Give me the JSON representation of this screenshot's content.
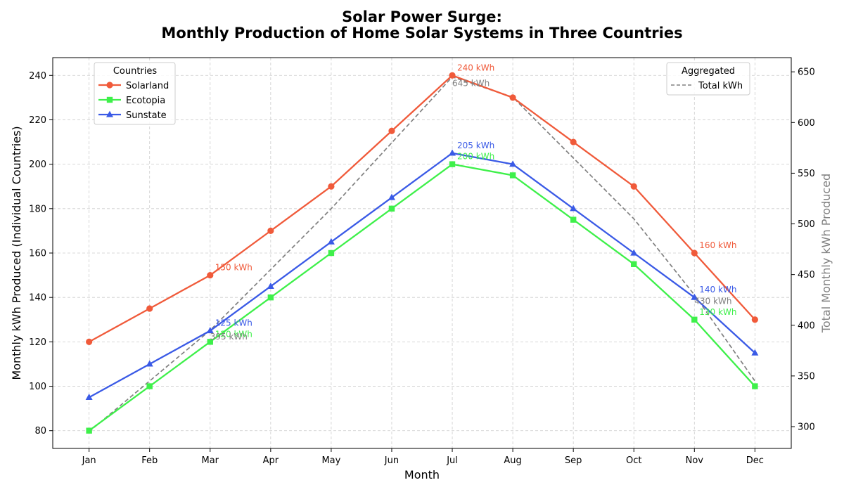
{
  "chart_data": {
    "type": "line",
    "title_line1": "Solar Power Surge:",
    "title_line2": "Monthly Production of Home Solar Systems in Three Countries",
    "xlabel": "Month",
    "ylabel": "Monthly kWh Produced (Individual Countries)",
    "y2label": "Total Monthly kWh Produced",
    "categories": [
      "Jan",
      "Feb",
      "Mar",
      "Apr",
      "May",
      "Jun",
      "Jul",
      "Aug",
      "Sep",
      "Oct",
      "Nov",
      "Dec"
    ],
    "ylim": [
      72,
      248
    ],
    "y2lim": [
      278.5,
      664
    ],
    "yticks": [
      80,
      100,
      120,
      140,
      160,
      180,
      200,
      220,
      240
    ],
    "y2ticks": [
      300,
      350,
      400,
      450,
      500,
      550,
      600,
      650
    ],
    "grid": true,
    "series": [
      {
        "name": "Solarland",
        "color": "#f05a3a",
        "marker": "circle",
        "values": [
          120,
          135,
          150,
          170,
          190,
          215,
          240,
          230,
          210,
          190,
          160,
          130
        ]
      },
      {
        "name": "Ecotopia",
        "color": "#3ef04a",
        "marker": "square",
        "values": [
          80,
          100,
          120,
          140,
          160,
          180,
          200,
          195,
          175,
          155,
          130,
          100
        ]
      },
      {
        "name": "Sunstate",
        "color": "#3a5ae6",
        "marker": "triangle",
        "values": [
          95,
          110,
          125,
          145,
          165,
          185,
          205,
          200,
          180,
          160,
          140,
          115
        ]
      }
    ],
    "total_series": {
      "name": "Total kWh",
      "color": "#808080",
      "values": [
        295,
        345,
        395,
        455,
        515,
        580,
        645,
        625,
        565,
        505,
        430,
        345
      ]
    },
    "annotations": [
      {
        "series": "Solarland",
        "month": "Mar",
        "text": "150 kWh"
      },
      {
        "series": "Solarland",
        "month": "Jul",
        "text": "240 kWh"
      },
      {
        "series": "Solarland",
        "month": "Nov",
        "text": "160 kWh"
      },
      {
        "series": "Ecotopia",
        "month": "Mar",
        "text": "120 kWh"
      },
      {
        "series": "Ecotopia",
        "month": "Jul",
        "text": "200 kWh"
      },
      {
        "series": "Ecotopia",
        "month": "Nov",
        "text": "130 kWh"
      },
      {
        "series": "Sunstate",
        "month": "Mar",
        "text": "125 kWh"
      },
      {
        "series": "Sunstate",
        "month": "Jul",
        "text": "205 kWh"
      },
      {
        "series": "Sunstate",
        "month": "Nov",
        "text": "140 kWh"
      },
      {
        "series": "Total kWh",
        "month": "Mar",
        "text": "395 kWh"
      },
      {
        "series": "Total kWh",
        "month": "Jul",
        "text": "645 kWh"
      },
      {
        "series": "Total kWh",
        "month": "Nov",
        "text": "430 kWh"
      }
    ],
    "legend_countries": {
      "title": "Countries",
      "placement": "upper-left"
    },
    "legend_aggregated": {
      "title": "Aggregated",
      "placement": "upper-right"
    }
  }
}
